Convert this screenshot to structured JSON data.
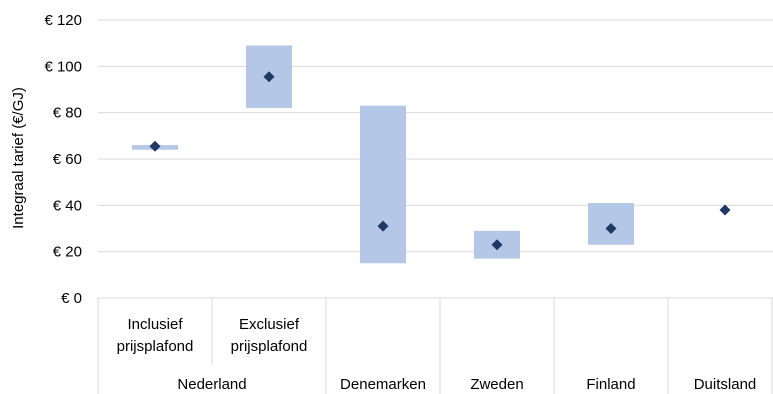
{
  "chart_data": {
    "type": "range",
    "ylabel": "Integraal tarief (€/GJ)",
    "ylim": [
      0,
      120
    ],
    "yticks": [
      0,
      20,
      40,
      60,
      80,
      100,
      120
    ],
    "ytick_prefix": "€ ",
    "grid": true,
    "categories": [
      {
        "sub": [
          "Inclusief",
          "prijsplafond"
        ],
        "group": "Nederland",
        "low": 64,
        "high": 66,
        "mid": 65.5
      },
      {
        "sub": [
          "Exclusief",
          "prijsplafond"
        ],
        "group": "Nederland",
        "low": 82,
        "high": 109,
        "mid": 95.5
      },
      {
        "sub": [],
        "group": "Denemarken",
        "low": 15,
        "high": 83,
        "mid": 31
      },
      {
        "sub": [],
        "group": "Zweden",
        "low": 17,
        "high": 29,
        "mid": 23
      },
      {
        "sub": [],
        "group": "Finland",
        "low": 23,
        "high": 41,
        "mid": 30
      },
      {
        "sub": [],
        "group": "Duitsland",
        "low": null,
        "high": null,
        "mid": 38
      }
    ],
    "groups": [
      "Nederland",
      "Denemarken",
      "Zweden",
      "Finland",
      "Duitsland"
    ],
    "colors": {
      "range": "#b4c7e7",
      "marker": "#1f3864",
      "grid": "#d9d9d9",
      "axis": "#d9d9d9"
    }
  }
}
